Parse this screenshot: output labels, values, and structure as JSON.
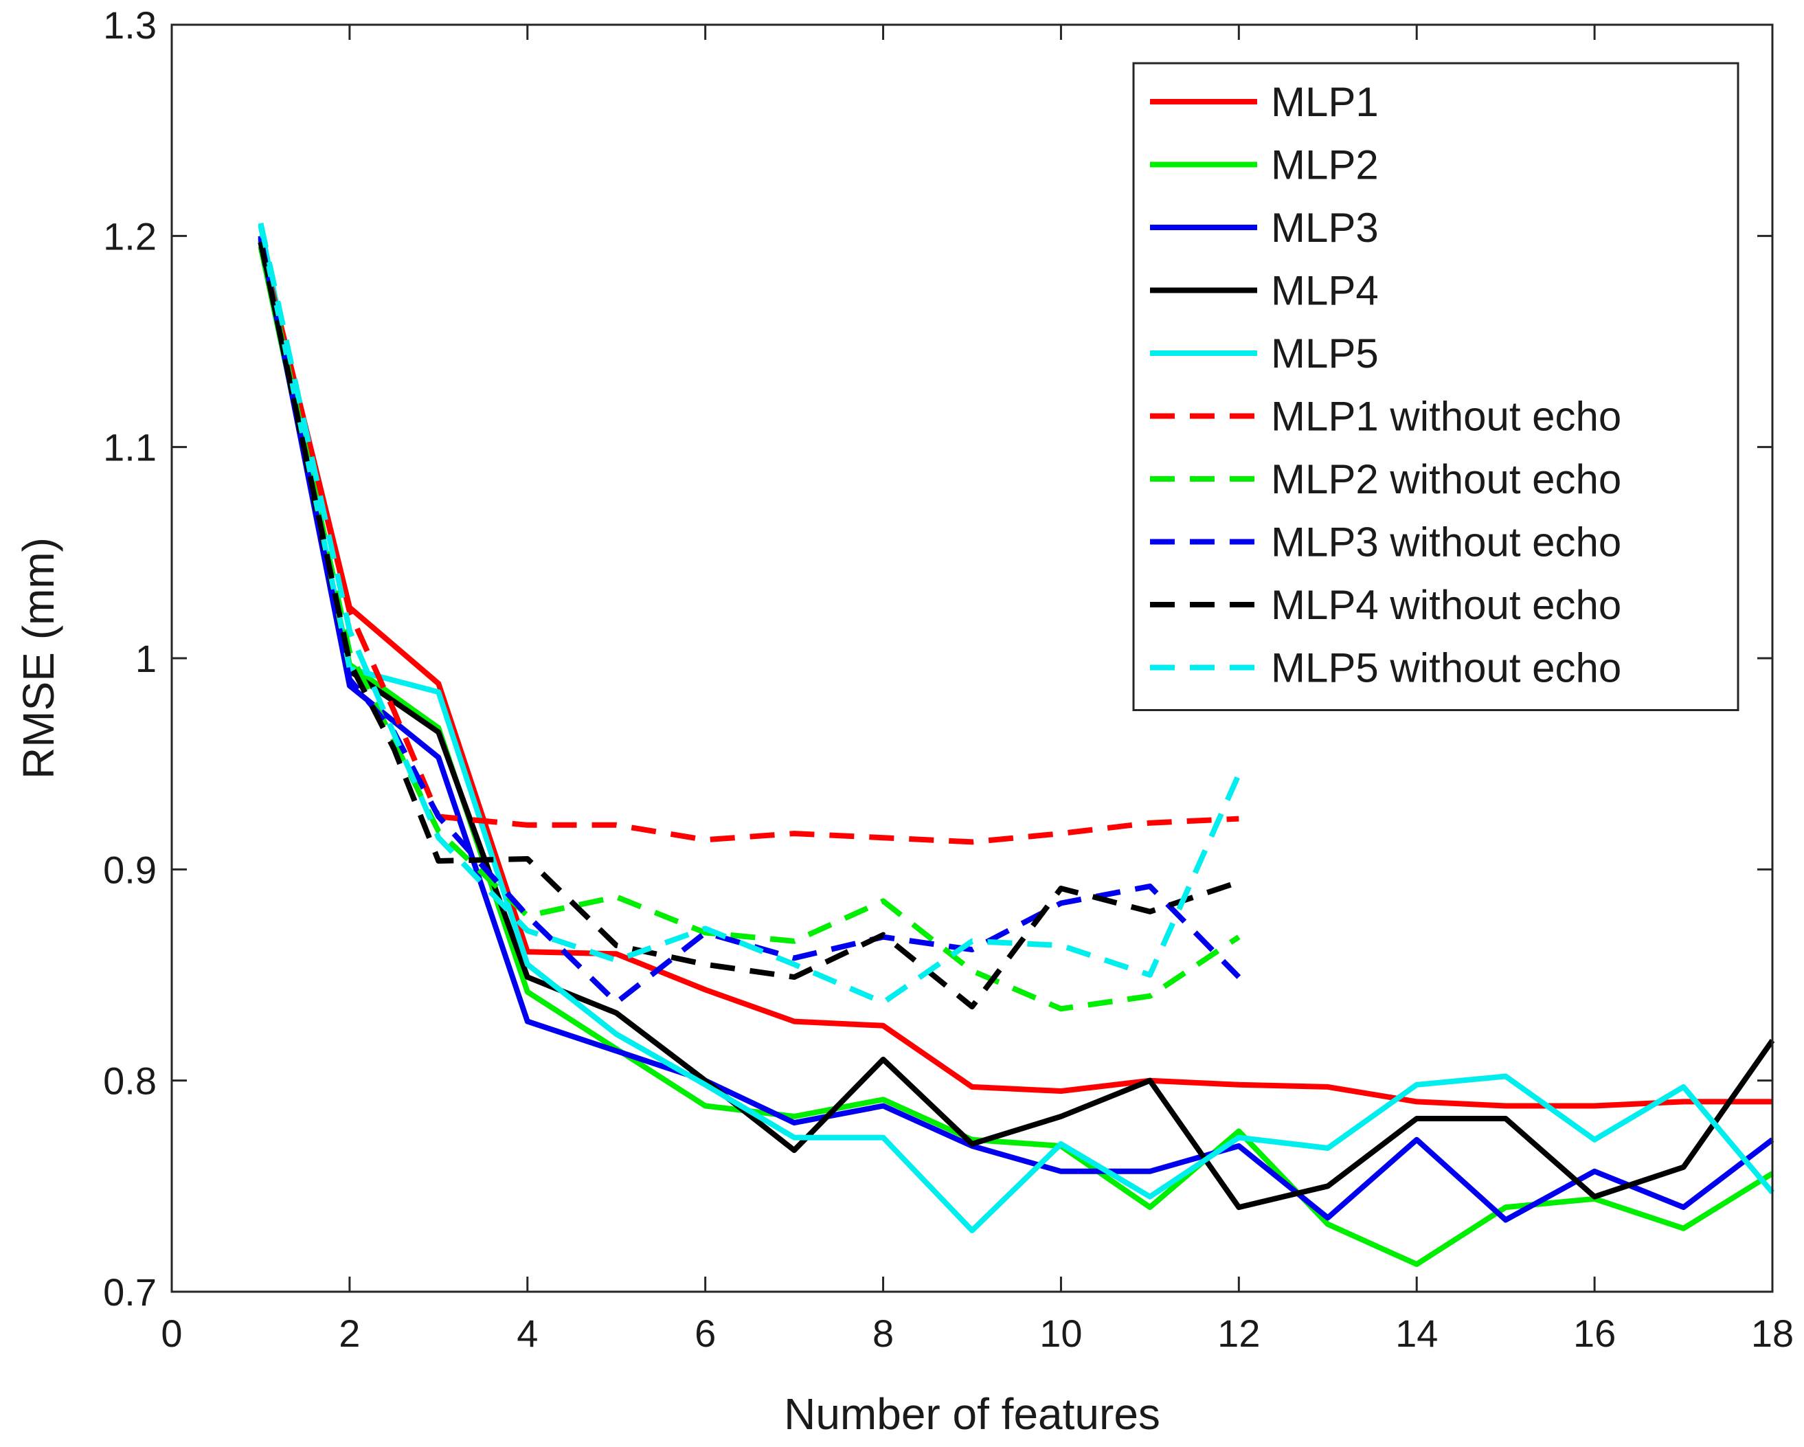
{
  "chart_data": {
    "type": "line",
    "title": "",
    "xlabel": "Number of features",
    "ylabel": "RMSE (mm)",
    "xlim": [
      0,
      18
    ],
    "ylim": [
      0.7,
      1.3
    ],
    "xticks": [
      0,
      2,
      4,
      6,
      8,
      10,
      12,
      14,
      16,
      18
    ],
    "xtick_labels": [
      "0",
      "2",
      "4",
      "6",
      "8",
      "10",
      "12",
      "14",
      "16",
      "18"
    ],
    "yticks": [
      0.7,
      0.8,
      0.9,
      1.0,
      1.1,
      1.2,
      1.3
    ],
    "ytick_labels": [
      "0.7",
      "0.8",
      "0.9",
      "1",
      "1.1",
      "1.2",
      "1.3"
    ],
    "grid": false,
    "legend_position": "top-right",
    "series": [
      {
        "name": "MLP1",
        "color": "#ff0000",
        "style": "solid",
        "x": [
          1,
          2,
          3,
          4,
          5,
          6,
          7,
          8,
          9,
          10,
          11,
          12,
          13,
          14,
          15,
          16,
          17,
          18
        ],
        "y": [
          1.197,
          1.024,
          0.988,
          0.861,
          0.86,
          0.843,
          0.828,
          0.826,
          0.797,
          0.795,
          0.8,
          0.798,
          0.797,
          0.79,
          0.788,
          0.788,
          0.79,
          0.79
        ]
      },
      {
        "name": "MLP2",
        "color": "#00ee00",
        "style": "solid",
        "x": [
          1,
          2,
          3,
          4,
          5,
          6,
          7,
          8,
          9,
          10,
          11,
          12,
          13,
          14,
          15,
          16,
          17,
          18
        ],
        "y": [
          1.195,
          0.997,
          0.967,
          0.842,
          0.815,
          0.788,
          0.783,
          0.791,
          0.772,
          0.769,
          0.74,
          0.776,
          0.732,
          0.713,
          0.74,
          0.744,
          0.73,
          0.756
        ]
      },
      {
        "name": "MLP3",
        "color": "#0000ee",
        "style": "solid",
        "x": [
          1,
          2,
          3,
          4,
          5,
          6,
          7,
          8,
          9,
          10,
          11,
          12,
          13,
          14,
          15,
          16,
          17,
          18
        ],
        "y": [
          1.2,
          0.987,
          0.953,
          0.828,
          0.814,
          0.8,
          0.78,
          0.788,
          0.769,
          0.757,
          0.757,
          0.769,
          0.735,
          0.772,
          0.734,
          0.757,
          0.74,
          0.772
        ]
      },
      {
        "name": "MLP4",
        "color": "#000000",
        "style": "solid",
        "x": [
          1,
          2,
          3,
          4,
          5,
          6,
          7,
          8,
          9,
          10,
          11,
          12,
          13,
          14,
          15,
          16,
          17,
          18
        ],
        "y": [
          1.198,
          0.994,
          0.965,
          0.849,
          0.832,
          0.8,
          0.767,
          0.81,
          0.77,
          0.783,
          0.8,
          0.74,
          0.75,
          0.782,
          0.782,
          0.745,
          0.759,
          0.819
        ]
      },
      {
        "name": "MLP5",
        "color": "#00eeee",
        "style": "solid",
        "x": [
          1,
          2,
          3,
          4,
          5,
          6,
          7,
          8,
          9,
          10,
          11,
          12,
          13,
          14,
          15,
          16,
          17,
          18
        ],
        "y": [
          1.205,
          0.995,
          0.984,
          0.855,
          0.822,
          0.798,
          0.773,
          0.773,
          0.729,
          0.77,
          0.745,
          0.773,
          0.768,
          0.798,
          0.802,
          0.772,
          0.797,
          0.747
        ]
      },
      {
        "name": "MLP1 without echo",
        "color": "#ff0000",
        "style": "dashed",
        "x": [
          1,
          2,
          2.5,
          3,
          4,
          5,
          6,
          7,
          8,
          9,
          10,
          11,
          12
        ],
        "y": [
          1.197,
          1.022,
          0.975,
          0.925,
          0.921,
          0.921,
          0.914,
          0.917,
          0.915,
          0.913,
          0.917,
          0.922,
          0.924
        ]
      },
      {
        "name": "MLP2 without echo",
        "color": "#00ee00",
        "style": "dashed",
        "x": [
          1,
          2,
          3,
          4,
          5,
          6,
          7,
          8,
          9,
          10,
          11,
          12
        ],
        "y": [
          1.198,
          1.003,
          0.918,
          0.878,
          0.887,
          0.87,
          0.866,
          0.885,
          0.852,
          0.834,
          0.84,
          0.868
        ]
      },
      {
        "name": "MLP3 without echo",
        "color": "#0000ee",
        "style": "dashed",
        "x": [
          1,
          2,
          2.5,
          3,
          4,
          5,
          6,
          7,
          8,
          9,
          10,
          11,
          12
        ],
        "y": [
          1.199,
          0.99,
          0.965,
          0.925,
          0.878,
          0.837,
          0.87,
          0.858,
          0.868,
          0.862,
          0.884,
          0.892,
          0.849
        ]
      },
      {
        "name": "MLP4 without echo",
        "color": "#000000",
        "style": "dashed",
        "x": [
          1,
          2,
          2.5,
          3,
          4,
          5,
          6,
          7,
          8,
          9,
          10,
          11,
          12
        ],
        "y": [
          1.197,
          0.998,
          0.957,
          0.904,
          0.905,
          0.864,
          0.855,
          0.849,
          0.869,
          0.835,
          0.891,
          0.88,
          0.894
        ]
      },
      {
        "name": "MLP5 without echo",
        "color": "#00eeee",
        "style": "dashed",
        "x": [
          1,
          2,
          3,
          4,
          5,
          6,
          7,
          8,
          9,
          10,
          11,
          12
        ],
        "y": [
          1.206,
          1.013,
          0.915,
          0.871,
          0.857,
          0.872,
          0.855,
          0.837,
          0.866,
          0.864,
          0.85,
          0.945
        ]
      }
    ]
  }
}
